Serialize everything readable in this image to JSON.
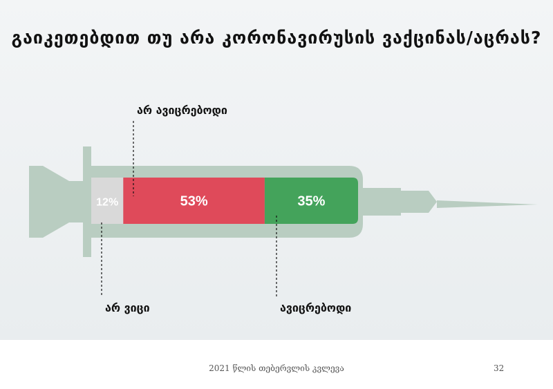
{
  "slide": {
    "title": "გაიკეთებდით თუ არა კორონავირუსის ვაქცინას/აცრას?",
    "footer": "2021 წლის თებერვლის კვლევა",
    "page_number": "32"
  },
  "chart_data": {
    "type": "bar",
    "orientation": "horizontal-stacked",
    "title": "გაიკეთებდით თუ არა კორონავირუსის ვაქცინას/აცრას?",
    "categories": [
      "არ ვიცი",
      "არ ავიცრებოდი",
      "ავიცრებოდი"
    ],
    "values": [
      12,
      53,
      35
    ],
    "value_labels": [
      "12%",
      "53%",
      "35%"
    ],
    "colors": [
      "#d9d9d9",
      "#df4a5a",
      "#44a35b"
    ],
    "unit": "%"
  }
}
